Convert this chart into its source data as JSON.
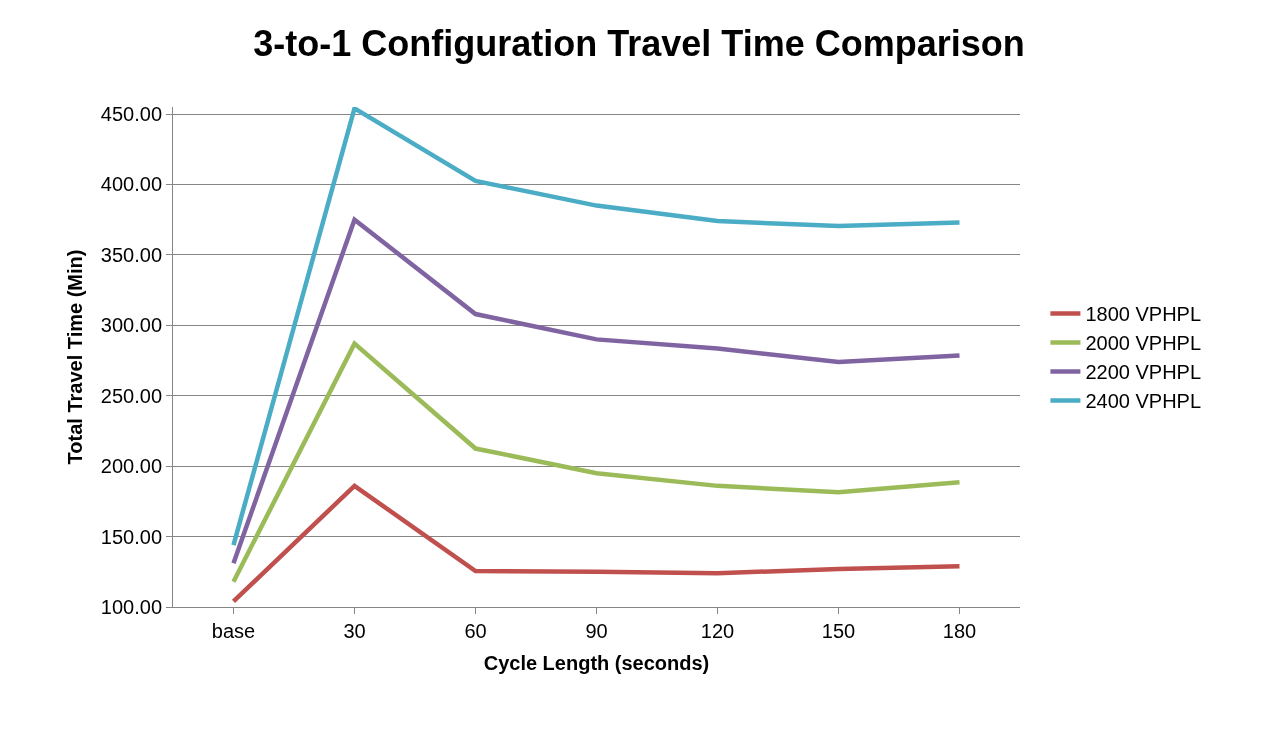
{
  "chart_data": {
    "type": "line",
    "title": "3-to-1 Configuration Travel Time Comparison",
    "xlabel": "Cycle Length (seconds)",
    "ylabel": "Total Travel Time (Min)",
    "categories": [
      "base",
      "30",
      "60",
      "90",
      "120",
      "150",
      "180"
    ],
    "series": [
      {
        "name": "1800 VPHPL",
        "color": "#c0504d",
        "values": [
          104,
          186,
          125.5,
          125,
          124,
          127,
          129
        ]
      },
      {
        "name": "2000 VPHPL",
        "color": "#9bbb59",
        "values": [
          118,
          287,
          212.5,
          195,
          186,
          181.5,
          188.5
        ]
      },
      {
        "name": "2200 VPHPL",
        "color": "#8064a2",
        "values": [
          131,
          375,
          308,
          290,
          283.5,
          274,
          278.5
        ]
      },
      {
        "name": "2400 VPHPL",
        "color": "#4bacc6",
        "values": [
          144,
          454,
          402.5,
          385,
          374,
          370.5,
          373
        ]
      }
    ],
    "ylim": [
      100,
      455
    ],
    "yticks": [
      {
        "value": 100,
        "label": "100.00"
      },
      {
        "value": 150,
        "label": "150.00"
      },
      {
        "value": 200,
        "label": "200.00"
      },
      {
        "value": 250,
        "label": "250.00"
      },
      {
        "value": 300,
        "label": "300.00"
      },
      {
        "value": 350,
        "label": "350.00"
      },
      {
        "value": 400,
        "label": "400.00"
      },
      {
        "value": 450,
        "label": "450.00"
      }
    ],
    "grid": "y",
    "legend": "right",
    "marker": "none",
    "line_style": "solid"
  }
}
